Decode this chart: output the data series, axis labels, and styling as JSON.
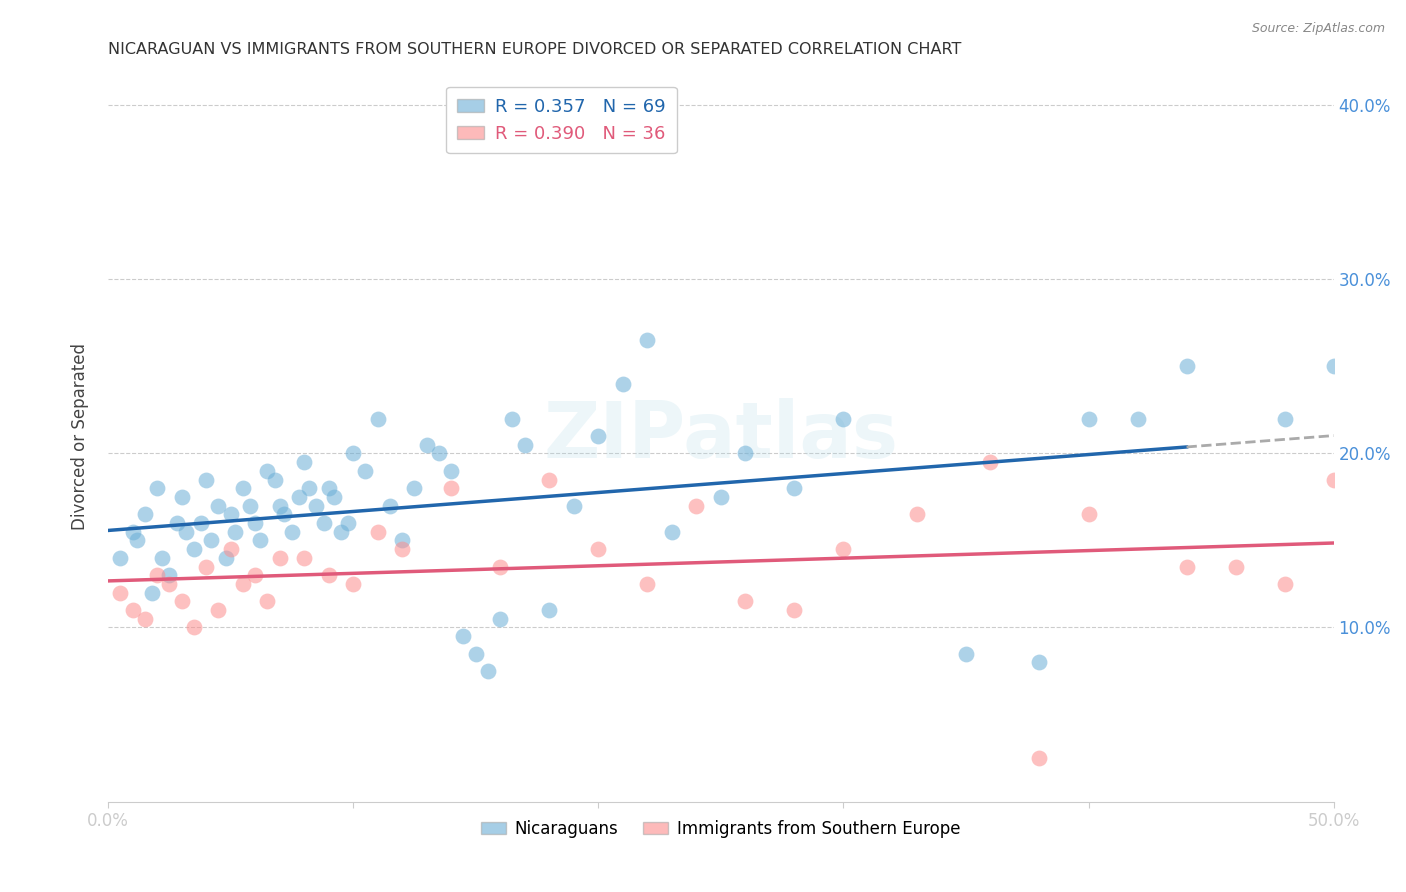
{
  "title": "NICARAGUAN VS IMMIGRANTS FROM SOUTHERN EUROPE DIVORCED OR SEPARATED CORRELATION CHART",
  "source": "Source: ZipAtlas.com",
  "ylabel": "Divorced or Separated",
  "legend_blue_R": "R = 0.357",
  "legend_blue_N": "N = 69",
  "legend_pink_R": "R = 0.390",
  "legend_pink_N": "N = 36",
  "blue_color": "#6baed6",
  "pink_color": "#fc8d8d",
  "blue_line_color": "#2166ac",
  "pink_line_color": "#e05a7a",
  "background_color": "#ffffff",
  "grid_color": "#cccccc",
  "axis_tick_color": "#4a90d9",
  "watermark": "ZIPatlas",
  "blue_scatter_x": [
    0.5,
    1.0,
    1.2,
    1.5,
    1.8,
    2.0,
    2.2,
    2.5,
    2.8,
    3.0,
    3.2,
    3.5,
    3.8,
    4.0,
    4.2,
    4.5,
    4.8,
    5.0,
    5.2,
    5.5,
    5.8,
    6.0,
    6.2,
    6.5,
    6.8,
    7.0,
    7.2,
    7.5,
    7.8,
    8.0,
    8.2,
    8.5,
    8.8,
    9.0,
    9.2,
    9.5,
    9.8,
    10.0,
    10.5,
    11.0,
    11.5,
    12.0,
    12.5,
    13.0,
    13.5,
    14.0,
    14.5,
    15.0,
    15.5,
    16.0,
    16.5,
    17.0,
    18.0,
    19.0,
    20.0,
    21.0,
    22.0,
    23.0,
    25.0,
    26.0,
    28.0,
    30.0,
    35.0,
    38.0,
    40.0,
    42.0,
    44.0,
    48.0,
    50.0
  ],
  "blue_scatter_y": [
    14.0,
    15.5,
    15.0,
    16.5,
    12.0,
    18.0,
    14.0,
    13.0,
    16.0,
    17.5,
    15.5,
    14.5,
    16.0,
    18.5,
    15.0,
    17.0,
    14.0,
    16.5,
    15.5,
    18.0,
    17.0,
    16.0,
    15.0,
    19.0,
    18.5,
    17.0,
    16.5,
    15.5,
    17.5,
    19.5,
    18.0,
    17.0,
    16.0,
    18.0,
    17.5,
    15.5,
    16.0,
    20.0,
    19.0,
    22.0,
    17.0,
    15.0,
    18.0,
    20.5,
    20.0,
    19.0,
    9.5,
    8.5,
    7.5,
    10.5,
    22.0,
    20.5,
    11.0,
    17.0,
    21.0,
    24.0,
    26.5,
    15.5,
    17.5,
    20.0,
    18.0,
    22.0,
    8.5,
    8.0,
    22.0,
    22.0,
    25.0,
    22.0,
    25.0
  ],
  "pink_scatter_x": [
    0.5,
    1.0,
    1.5,
    2.0,
    2.5,
    3.0,
    3.5,
    4.0,
    4.5,
    5.0,
    5.5,
    6.0,
    6.5,
    7.0,
    8.0,
    9.0,
    10.0,
    11.0,
    12.0,
    14.0,
    16.0,
    18.0,
    20.0,
    22.0,
    24.0,
    26.0,
    28.0,
    30.0,
    33.0,
    36.0,
    38.0,
    40.0,
    44.0,
    46.0,
    48.0,
    50.0
  ],
  "pink_scatter_y": [
    12.0,
    11.0,
    10.5,
    13.0,
    12.5,
    11.5,
    10.0,
    13.5,
    11.0,
    14.5,
    12.5,
    13.0,
    11.5,
    14.0,
    14.0,
    13.0,
    12.5,
    15.5,
    14.5,
    18.0,
    13.5,
    18.5,
    14.5,
    12.5,
    17.0,
    11.5,
    11.0,
    14.5,
    16.5,
    19.5,
    2.5,
    16.5,
    13.5,
    13.5,
    12.5,
    18.5
  ],
  "xlim": [
    0,
    50
  ],
  "ylim": [
    0,
    42
  ],
  "ytick_positions": [
    10,
    20,
    30,
    40
  ],
  "ytick_labels": [
    "10.0%",
    "20.0%",
    "30.0%",
    "40.0%"
  ],
  "xtick_positions": [
    0,
    10,
    20,
    30,
    40,
    50
  ],
  "xtick_labels": [
    "0.0%",
    "",
    "",
    "",
    "",
    "50.0%"
  ]
}
